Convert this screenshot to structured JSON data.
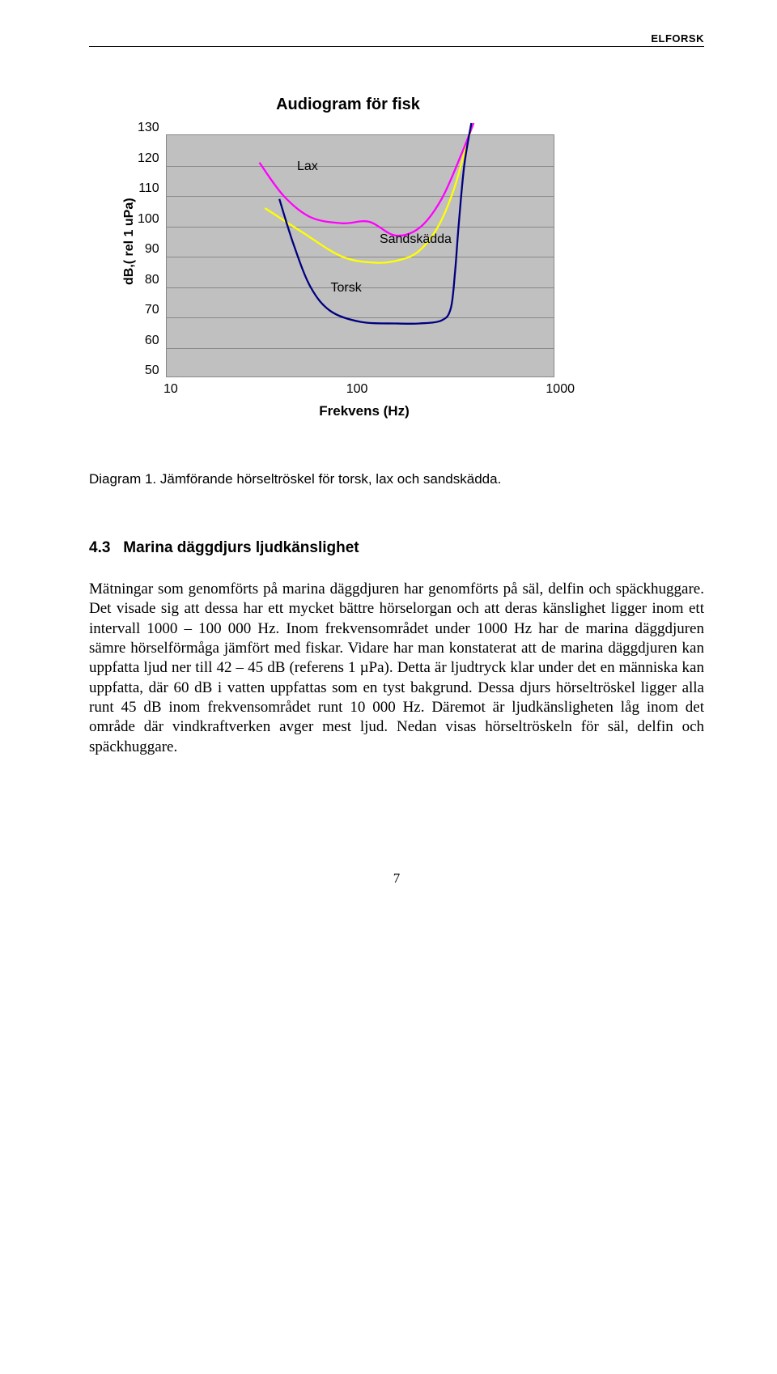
{
  "header": {
    "brand": "ELFORSK"
  },
  "chart": {
    "type": "line",
    "title": "Audiogram för fisk",
    "xlabel": "Frekvens (Hz)",
    "ylabel": "dB,( rel 1 uPa)",
    "x_scale": "log",
    "xlim": [
      10,
      1000
    ],
    "x_ticks": [
      10,
      100,
      1000
    ],
    "ylim": [
      50,
      130
    ],
    "y_ticks": [
      50,
      60,
      70,
      80,
      90,
      100,
      110,
      120,
      130
    ],
    "grid_color": "#888888",
    "background_color": "#c0c0c0",
    "line_width": 2.3,
    "series": [
      {
        "name": "Lax",
        "color": "#ffff00",
        "points": [
          [
            32,
            106
          ],
          [
            50,
            98
          ],
          [
            80,
            90
          ],
          [
            120,
            88
          ],
          [
            160,
            89
          ],
          [
            200,
            92
          ],
          [
            250,
            100
          ],
          [
            300,
            112
          ],
          [
            350,
            127
          ],
          [
            380,
            134
          ]
        ],
        "label_pos": [
          47,
          120
        ]
      },
      {
        "name": "Sandskädda",
        "color": "#ff00ff",
        "points": [
          [
            30,
            121
          ],
          [
            40,
            110
          ],
          [
            55,
            103
          ],
          [
            80,
            101
          ],
          [
            110,
            101.5
          ],
          [
            150,
            97
          ],
          [
            200,
            99.5
          ],
          [
            260,
            109
          ],
          [
            330,
            124
          ],
          [
            380,
            134
          ]
        ],
        "label_pos": [
          125,
          96
        ]
      },
      {
        "name": "Torsk",
        "color": "#000080",
        "points": [
          [
            38,
            109
          ],
          [
            45,
            94
          ],
          [
            55,
            80
          ],
          [
            70,
            72
          ],
          [
            100,
            68.5
          ],
          [
            150,
            68
          ],
          [
            200,
            68
          ],
          [
            260,
            69
          ],
          [
            290,
            73
          ],
          [
            305,
            85
          ],
          [
            318,
            100
          ],
          [
            340,
            120
          ],
          [
            370,
            134
          ]
        ],
        "label_pos": [
          70,
          80
        ]
      }
    ]
  },
  "caption": "Diagram 1. Jämförande hörseltröskel för torsk, lax och sandskädda.",
  "section": {
    "number": "4.3",
    "title": "Marina däggdjurs ljudkänslighet"
  },
  "body": "Mätningar som genomförts på marina däggdjuren har genomförts på säl, delfin och späckhuggare. Det visade sig att dessa har ett mycket bättre hörselorgan och att deras känslighet ligger inom ett intervall 1000 – 100 000 Hz. Inom frekvensområdet under 1000 Hz har de marina däggdjuren sämre hörselförmåga jämfört med fiskar. Vidare har man konstaterat att de marina däggdjuren kan uppfatta ljud ner till 42 – 45 dB (referens 1 µPa). Detta är ljudtryck klar under det en människa kan uppfatta, där 60 dB i vatten uppfattas som en tyst bakgrund. Dessa djurs hörseltröskel ligger alla runt 45 dB inom frekvensområdet runt 10 000 Hz. Däremot är ljudkänsligheten låg inom det område där vindkraftverken avger mest ljud. Nedan visas hörseltröskeln för säl, delfin och späckhuggare.",
  "page_number": "7"
}
